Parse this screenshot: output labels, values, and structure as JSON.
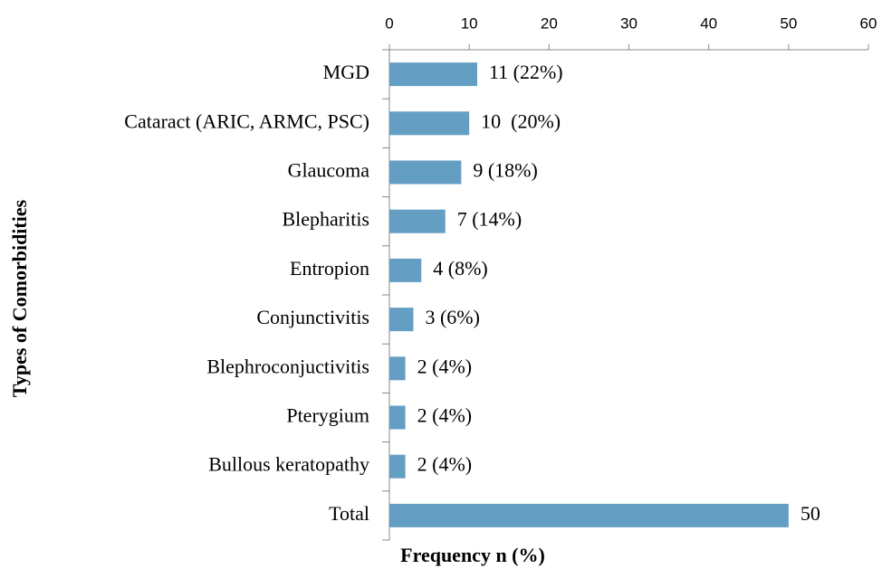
{
  "chart_data": {
    "type": "barh",
    "y_axis_label": "Types of Comorbidities",
    "x_axis_label": "Frequency n (%)",
    "categories": [
      "MGD",
      "Cataract (ARIC, ARMC, PSC)",
      "Glaucoma",
      "Blepharitis",
      "Entropion",
      "Conjunctivitis",
      "Blephroconjuctivitis",
      "Pterygium",
      "Bullous keratopathy",
      "Total"
    ],
    "values": [
      11,
      10,
      9,
      7,
      4,
      3,
      2,
      2,
      2,
      50
    ],
    "value_labels": [
      "11 (22%)",
      "10  (20%)",
      "9 (18%)",
      "7 (14%)",
      "4 (8%)",
      "3 (6%)",
      "2 (4%)",
      "2 (4%)",
      "2 (4%)",
      "50"
    ],
    "color": "#659ec3",
    "xlim": [
      0,
      60
    ],
    "xticks": [
      0,
      10,
      20,
      30,
      40,
      50,
      60
    ],
    "x_axis_position": "top",
    "grid": false
  }
}
